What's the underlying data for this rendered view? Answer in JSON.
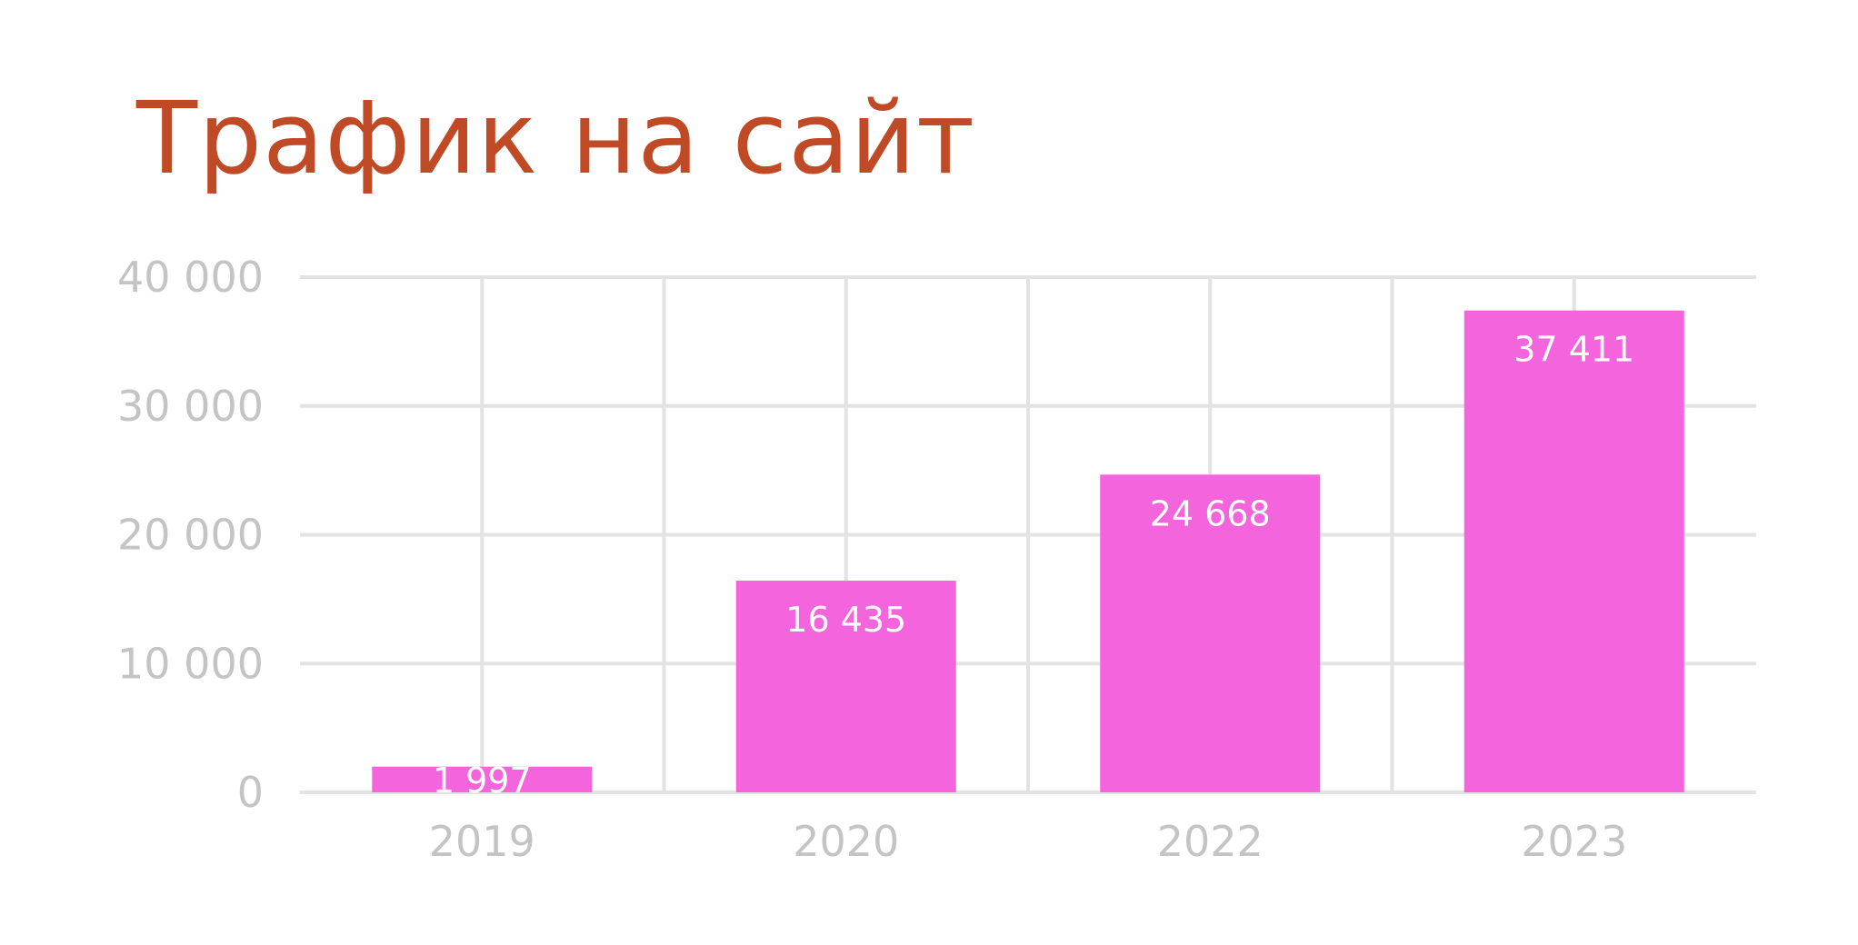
{
  "title": "Трафик на сайт",
  "colors": {
    "title": "#c04a26",
    "bar": "#f464dc",
    "grid": "#e3e3e3",
    "tick_label": "#c4c4c4",
    "data_label": "#ffffff"
  },
  "chart_data": {
    "type": "bar",
    "title": "Трафик на сайт",
    "xlabel": "",
    "ylabel": "",
    "categories": [
      "2019",
      "2020",
      "2022",
      "2023"
    ],
    "values": [
      1997,
      16435,
      24668,
      37411
    ],
    "value_labels": [
      "1 997",
      "16 435",
      "24 668",
      "37 411"
    ],
    "ylim": [
      0,
      40000
    ],
    "yticks": [
      0,
      10000,
      20000,
      30000,
      40000
    ],
    "ytick_labels": [
      "0",
      "10 000",
      "20 000",
      "30 000",
      "40 000"
    ],
    "grid": true,
    "legend": "none"
  }
}
